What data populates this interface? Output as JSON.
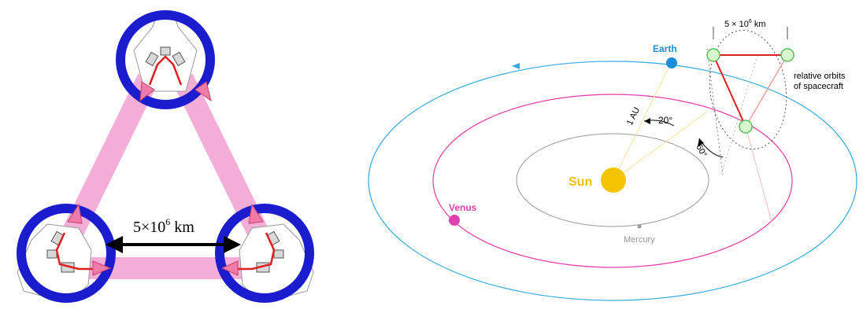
{
  "left_panel": {
    "baseline_label_text": "5×10",
    "baseline_label_exp": "6",
    "baseline_label_unit": " km",
    "colors": {
      "ring": "#1c1ccf",
      "beam": "#f2a9d4",
      "laser": "#e02020",
      "arrow": "#000000"
    }
  },
  "right_panel": {
    "labels": {
      "earth": "Earth",
      "sun": "Sun",
      "venus": "Venus",
      "mercury": "Mercury",
      "au": "1 AU",
      "angle_20": "20°",
      "angle_60": "60°",
      "arm_length": "5 × 10",
      "arm_length_exp": "6",
      "arm_length_unit": " km",
      "relative_orbits_line1": "relative orbits",
      "relative_orbits_line2": "of spacecraft"
    },
    "colors": {
      "earth_orbit": "#33aadd",
      "earth": "#1a8ed8",
      "venus_orbit": "#e63aa8",
      "venus": "#e040b0",
      "mercury_orbit": "#999999",
      "mercury": "#999999",
      "sun": "#f5c400",
      "sun_label": "#f0c000",
      "triangle": "#e02020",
      "spacecraft_ring": "#55c055"
    }
  }
}
